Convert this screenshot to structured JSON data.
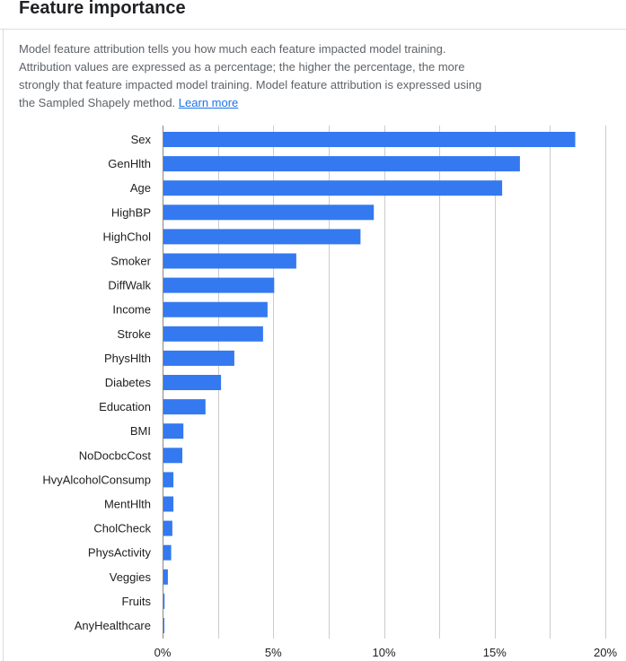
{
  "panel": {
    "title": "Feature importance",
    "description": "Model feature attribution tells you how much each feature impacted model training. Attribution values are expressed as a percentage; the higher the percentage, the more strongly that feature impacted model training. Model feature attribution is expressed using the Sampled Shapely method.",
    "learn_more": "Learn more"
  },
  "colors": {
    "bar": "#3479f0",
    "grid": "#cccccc",
    "label": "#202124"
  },
  "chart_data": {
    "type": "bar",
    "orientation": "horizontal",
    "categories": [
      "Sex",
      "GenHlth",
      "Age",
      "HighBP",
      "HighChol",
      "Smoker",
      "DiffWalk",
      "Income",
      "Stroke",
      "PhysHlth",
      "Diabetes",
      "Education",
      "BMI",
      "NoDocbcCost",
      "HvyAlcoholConsump",
      "MentHlth",
      "CholCheck",
      "PhysActivity",
      "Veggies",
      "Fruits",
      "AnyHealthcare"
    ],
    "values": [
      18.6,
      16.1,
      15.3,
      9.5,
      8.9,
      6.0,
      5.0,
      4.7,
      4.5,
      3.2,
      2.6,
      1.9,
      0.9,
      0.85,
      0.45,
      0.45,
      0.4,
      0.35,
      0.2,
      0.05,
      0.02
    ],
    "xlim": [
      0,
      20
    ],
    "xticks": [
      "0%",
      "5%",
      "10%",
      "15%",
      "20%"
    ],
    "grid": true,
    "title": "",
    "xlabel": "",
    "ylabel": ""
  }
}
